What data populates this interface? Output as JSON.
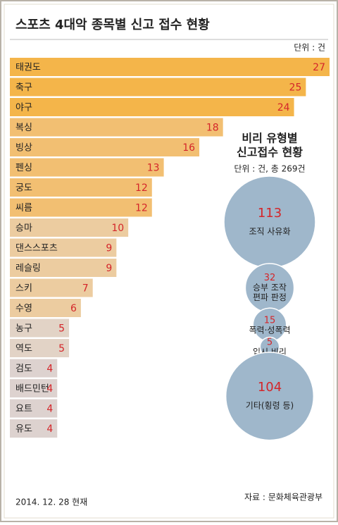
{
  "title": "스포츠 4대악 종목별 신고 접수 현황",
  "unit": "단위 : 건",
  "date_note": "2014. 12. 28 현재",
  "source": "자료 : 문화체육관광부",
  "chart_data": [
    {
      "type": "hbar",
      "categories": [
        "태권도",
        "축구",
        "야구",
        "복싱",
        "빙상",
        "펜싱",
        "궁도",
        "씨름",
        "승마",
        "댄스스포츠",
        "레슬링",
        "스키",
        "수영",
        "농구",
        "역도",
        "검도",
        "배드민턴",
        "요트",
        "유도"
      ],
      "values": [
        27,
        25,
        24,
        18,
        16,
        13,
        12,
        12,
        10,
        9,
        9,
        7,
        6,
        5,
        5,
        4,
        4,
        4,
        4
      ],
      "colors": [
        "#f4b54a",
        "#f4b54a",
        "#f4b54a",
        "#f2bf72",
        "#f2bf72",
        "#f2bf72",
        "#f2bf72",
        "#f2bf72",
        "#eccca0",
        "#eccca0",
        "#eccca0",
        "#eccca0",
        "#eccca0",
        "#e2d3c6",
        "#e2d3c6",
        "#ddd2cf",
        "#ddd2cf",
        "#ddd2cf",
        "#ddd2cf"
      ],
      "value_color": "#d4262a"
    },
    {
      "type": "bubble",
      "title": [
        "비리 유형별",
        "신고접수 현황"
      ],
      "subtitle": "단위 : 건, 총 269건",
      "categories": [
        [
          "조직 사유화"
        ],
        [
          "승부 조작",
          "편파 판정"
        ],
        [
          "폭력·성폭력"
        ],
        [
          "입시 비리"
        ],
        [
          "기타(횡령 등)"
        ]
      ],
      "values": [
        113,
        32,
        15,
        5,
        104
      ],
      "color": "#9fb7cb",
      "value_color": "#d4262a"
    }
  ]
}
